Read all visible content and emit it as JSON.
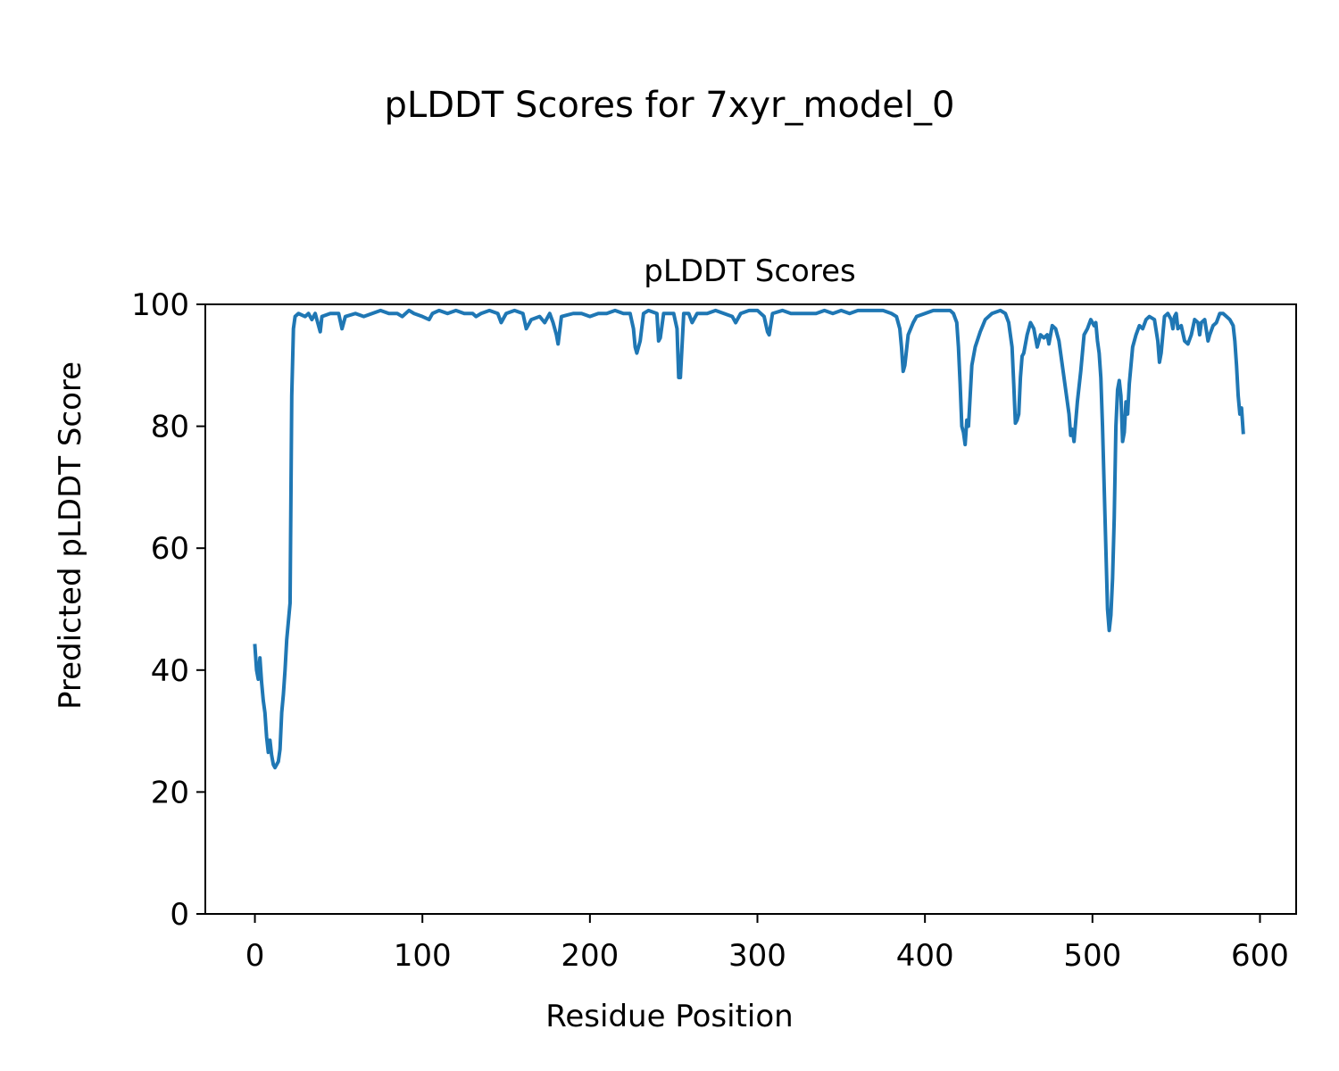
{
  "figure": {
    "suptitle": "pLDDT Scores for 7xyr_model_0"
  },
  "chart_data": {
    "type": "line",
    "title": "pLDDT Scores",
    "xlabel": "Residue Position",
    "ylabel": "Predicted pLDDT Score",
    "xlim": [
      -29.6,
      621.6
    ],
    "ylim": [
      0,
      100
    ],
    "xticks": [
      0,
      100,
      200,
      300,
      400,
      500,
      600
    ],
    "yticks": [
      0,
      20,
      40,
      60,
      80,
      100
    ],
    "grid": false,
    "line_color": "#1f77b4",
    "series": [
      {
        "points": [
          [
            0,
            44
          ],
          [
            1,
            40
          ],
          [
            2,
            38.5
          ],
          [
            3,
            42
          ],
          [
            4,
            38
          ],
          [
            5,
            35
          ],
          [
            6,
            33
          ],
          [
            7,
            29
          ],
          [
            8,
            26.5
          ],
          [
            9,
            28.5
          ],
          [
            10,
            26
          ],
          [
            11,
            24.5
          ],
          [
            12,
            24
          ],
          [
            13,
            24.5
          ],
          [
            14,
            25
          ],
          [
            15,
            27
          ],
          [
            16,
            33
          ],
          [
            17,
            36
          ],
          [
            18,
            40
          ],
          [
            19,
            45
          ],
          [
            20,
            48
          ],
          [
            21,
            51
          ],
          [
            22,
            85
          ],
          [
            23,
            96
          ],
          [
            24,
            98
          ],
          [
            26,
            98.5
          ],
          [
            30,
            98
          ],
          [
            32,
            98.5
          ],
          [
            34,
            97.5
          ],
          [
            36,
            98.5
          ],
          [
            38,
            96.5
          ],
          [
            39,
            95.5
          ],
          [
            40,
            98
          ],
          [
            45,
            98.5
          ],
          [
            50,
            98.5
          ],
          [
            52,
            96
          ],
          [
            54,
            98
          ],
          [
            60,
            98.5
          ],
          [
            65,
            98
          ],
          [
            70,
            98.5
          ],
          [
            75,
            99
          ],
          [
            80,
            98.5
          ],
          [
            85,
            98.5
          ],
          [
            88,
            98
          ],
          [
            92,
            99
          ],
          [
            95,
            98.5
          ],
          [
            100,
            98
          ],
          [
            104,
            97.5
          ],
          [
            106,
            98.5
          ],
          [
            110,
            99
          ],
          [
            115,
            98.5
          ],
          [
            120,
            99
          ],
          [
            125,
            98.5
          ],
          [
            130,
            98.5
          ],
          [
            132,
            98
          ],
          [
            135,
            98.5
          ],
          [
            140,
            99
          ],
          [
            145,
            98.5
          ],
          [
            147,
            97
          ],
          [
            150,
            98.5
          ],
          [
            155,
            99
          ],
          [
            160,
            98.5
          ],
          [
            162,
            96
          ],
          [
            165,
            97.5
          ],
          [
            170,
            98
          ],
          [
            173,
            97
          ],
          [
            176,
            98.5
          ],
          [
            178,
            97
          ],
          [
            180,
            95
          ],
          [
            181,
            93.5
          ],
          [
            183,
            98
          ],
          [
            190,
            98.5
          ],
          [
            195,
            98.5
          ],
          [
            200,
            98
          ],
          [
            205,
            98.5
          ],
          [
            210,
            98.5
          ],
          [
            215,
            99
          ],
          [
            220,
            98.5
          ],
          [
            224,
            98.5
          ],
          [
            226,
            96
          ],
          [
            227,
            93
          ],
          [
            228,
            92
          ],
          [
            230,
            94
          ],
          [
            232,
            98.5
          ],
          [
            235,
            99
          ],
          [
            240,
            98.5
          ],
          [
            241,
            94
          ],
          [
            242,
            94.5
          ],
          [
            244,
            98.5
          ],
          [
            250,
            98.5
          ],
          [
            252,
            96
          ],
          [
            253,
            88
          ],
          [
            254,
            88
          ],
          [
            256,
            98.5
          ],
          [
            259,
            98.5
          ],
          [
            261,
            97
          ],
          [
            264,
            98.5
          ],
          [
            270,
            98.5
          ],
          [
            275,
            99
          ],
          [
            280,
            98.5
          ],
          [
            285,
            98
          ],
          [
            287,
            97
          ],
          [
            290,
            98.5
          ],
          [
            295,
            99
          ],
          [
            300,
            99
          ],
          [
            304,
            98
          ],
          [
            306,
            95.5
          ],
          [
            307,
            95
          ],
          [
            309,
            98.5
          ],
          [
            315,
            99
          ],
          [
            320,
            98.5
          ],
          [
            325,
            98.5
          ],
          [
            330,
            98.5
          ],
          [
            335,
            98.5
          ],
          [
            340,
            99
          ],
          [
            345,
            98.5
          ],
          [
            350,
            99
          ],
          [
            355,
            98.5
          ],
          [
            360,
            99
          ],
          [
            365,
            99
          ],
          [
            370,
            99
          ],
          [
            375,
            99
          ],
          [
            380,
            98.5
          ],
          [
            383,
            98
          ],
          [
            385,
            96
          ],
          [
            386,
            93
          ],
          [
            387,
            89
          ],
          [
            388,
            90
          ],
          [
            390,
            95
          ],
          [
            393,
            97
          ],
          [
            395,
            98
          ],
          [
            400,
            98.5
          ],
          [
            405,
            99
          ],
          [
            410,
            99
          ],
          [
            415,
            99
          ],
          [
            417,
            98.5
          ],
          [
            419,
            97
          ],
          [
            420,
            93
          ],
          [
            421,
            87
          ],
          [
            422,
            80
          ],
          [
            423,
            79
          ],
          [
            424,
            77
          ],
          [
            425,
            81
          ],
          [
            426,
            80
          ],
          [
            427,
            85
          ],
          [
            428,
            90
          ],
          [
            430,
            93
          ],
          [
            433,
            95.5
          ],
          [
            436,
            97.5
          ],
          [
            440,
            98.5
          ],
          [
            445,
            99
          ],
          [
            448,
            98.5
          ],
          [
            450,
            97
          ],
          [
            451,
            95
          ],
          [
            452,
            93
          ],
          [
            453,
            87
          ],
          [
            454,
            80.5
          ],
          [
            455,
            81
          ],
          [
            456,
            82
          ],
          [
            457,
            88
          ],
          [
            458,
            91.5
          ],
          [
            459,
            92
          ],
          [
            461,
            95
          ],
          [
            463,
            97
          ],
          [
            465,
            96
          ],
          [
            467,
            93
          ],
          [
            469,
            95
          ],
          [
            471,
            94.5
          ],
          [
            473,
            95
          ],
          [
            474,
            93.5
          ],
          [
            476,
            96.5
          ],
          [
            478,
            96
          ],
          [
            480,
            94
          ],
          [
            482,
            90
          ],
          [
            484,
            86
          ],
          [
            486,
            82
          ],
          [
            487,
            78.5
          ],
          [
            488,
            79.5
          ],
          [
            489,
            77.5
          ],
          [
            491,
            84
          ],
          [
            493,
            89
          ],
          [
            495,
            95
          ],
          [
            497,
            96
          ],
          [
            499,
            97.5
          ],
          [
            501,
            96.5
          ],
          [
            502,
            97
          ],
          [
            503,
            94
          ],
          [
            504,
            92
          ],
          [
            505,
            88
          ],
          [
            506,
            80
          ],
          [
            507,
            70
          ],
          [
            508,
            60
          ],
          [
            509,
            50
          ],
          [
            510,
            46.5
          ],
          [
            511,
            49
          ],
          [
            512,
            55
          ],
          [
            513,
            65
          ],
          [
            514,
            80
          ],
          [
            515,
            86
          ],
          [
            516,
            87.5
          ],
          [
            517,
            85
          ],
          [
            518,
            77.5
          ],
          [
            519,
            79
          ],
          [
            520,
            84
          ],
          [
            521,
            82
          ],
          [
            522,
            87
          ],
          [
            524,
            93
          ],
          [
            526,
            95
          ],
          [
            528,
            96.5
          ],
          [
            530,
            96
          ],
          [
            532,
            97.5
          ],
          [
            534,
            98
          ],
          [
            537,
            97.5
          ],
          [
            539,
            94
          ],
          [
            540,
            90.5
          ],
          [
            541,
            92
          ],
          [
            543,
            98
          ],
          [
            545,
            98.5
          ],
          [
            547,
            97.5
          ],
          [
            548,
            96
          ],
          [
            549,
            98
          ],
          [
            550,
            98.5
          ],
          [
            551,
            96
          ],
          [
            553,
            96.5
          ],
          [
            555,
            94
          ],
          [
            557,
            93.5
          ],
          [
            559,
            95
          ],
          [
            561,
            97.5
          ],
          [
            563,
            97
          ],
          [
            564,
            95
          ],
          [
            565,
            97
          ],
          [
            567,
            97.5
          ],
          [
            569,
            94
          ],
          [
            570,
            95
          ],
          [
            572,
            96.5
          ],
          [
            574,
            97
          ],
          [
            576,
            98.5
          ],
          [
            578,
            98.5
          ],
          [
            580,
            98
          ],
          [
            582,
            97.5
          ],
          [
            584,
            96.5
          ],
          [
            585,
            94
          ],
          [
            586,
            90
          ],
          [
            587,
            85
          ],
          [
            588,
            82
          ],
          [
            589,
            83
          ],
          [
            590,
            79
          ]
        ]
      }
    ]
  }
}
